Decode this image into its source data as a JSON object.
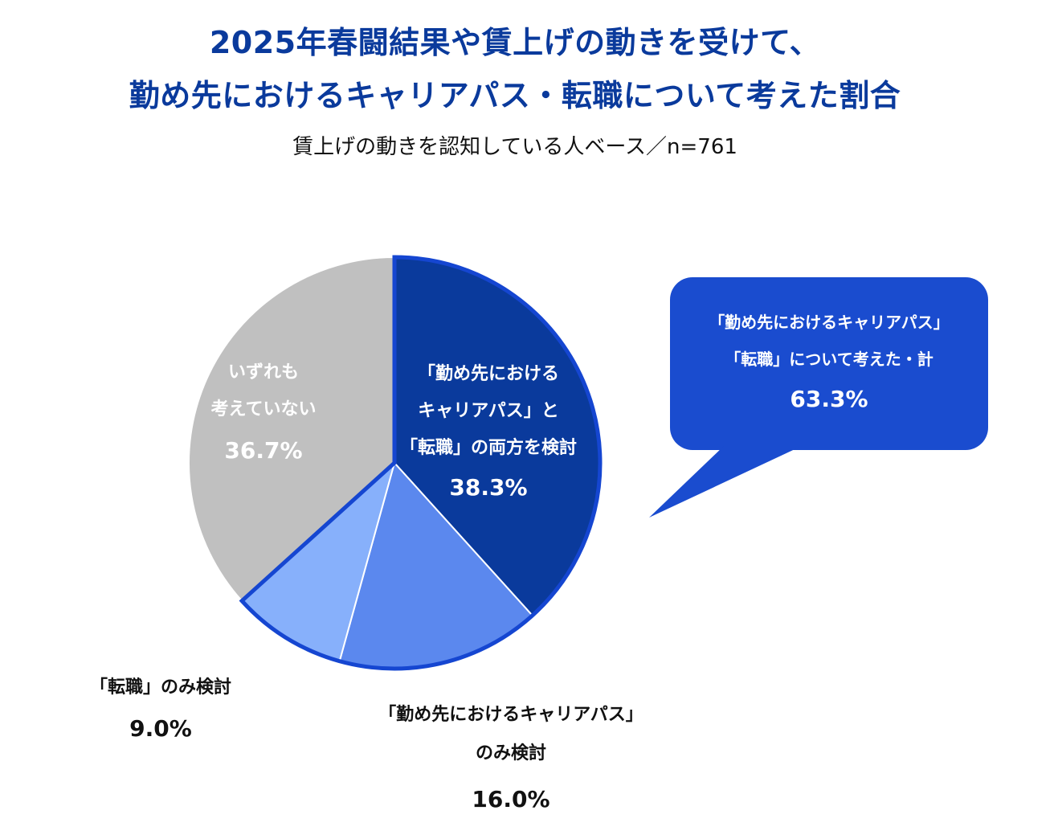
{
  "chart_data": {
    "type": "pie",
    "title": "2025年春闘結果や賃上げの動きを受けて、",
    "title_line2": "勤め先におけるキャリアパス・転職について考えた割合",
    "subtitle": "賃上げの動きを認知している人ベース／n=761",
    "slices": [
      {
        "label_lines": [
          "「勤め先における",
          "キャリアパス」と",
          "「転職」の両方を検討"
        ],
        "value": 38.3,
        "value_label": "38.3%",
        "color": "#0a3a9c",
        "label_color": "#ffffff"
      },
      {
        "label_lines": [
          "「勤め先におけるキャリアパス」",
          "のみ検討"
        ],
        "value": 16.0,
        "value_label": "16.0%",
        "color": "#5b88ee",
        "label_color": "#111111"
      },
      {
        "label_lines": [
          "「転職」のみ検討"
        ],
        "value": 9.0,
        "value_label": "9.0%",
        "color": "#87b0fb",
        "label_color": "#111111"
      },
      {
        "label_lines": [
          "いずれも",
          "考えていない"
        ],
        "value": 36.7,
        "value_label": "36.7%",
        "color": "#c0c0c0",
        "label_color": "#ffffff"
      }
    ],
    "highlight_outline_color": "#1546d1",
    "callout": {
      "lines": [
        "「勤め先におけるキャリアパス」",
        "「転職」について考えた・計"
      ],
      "value_label": "63.3%",
      "color": "#1a4ccf"
    }
  }
}
